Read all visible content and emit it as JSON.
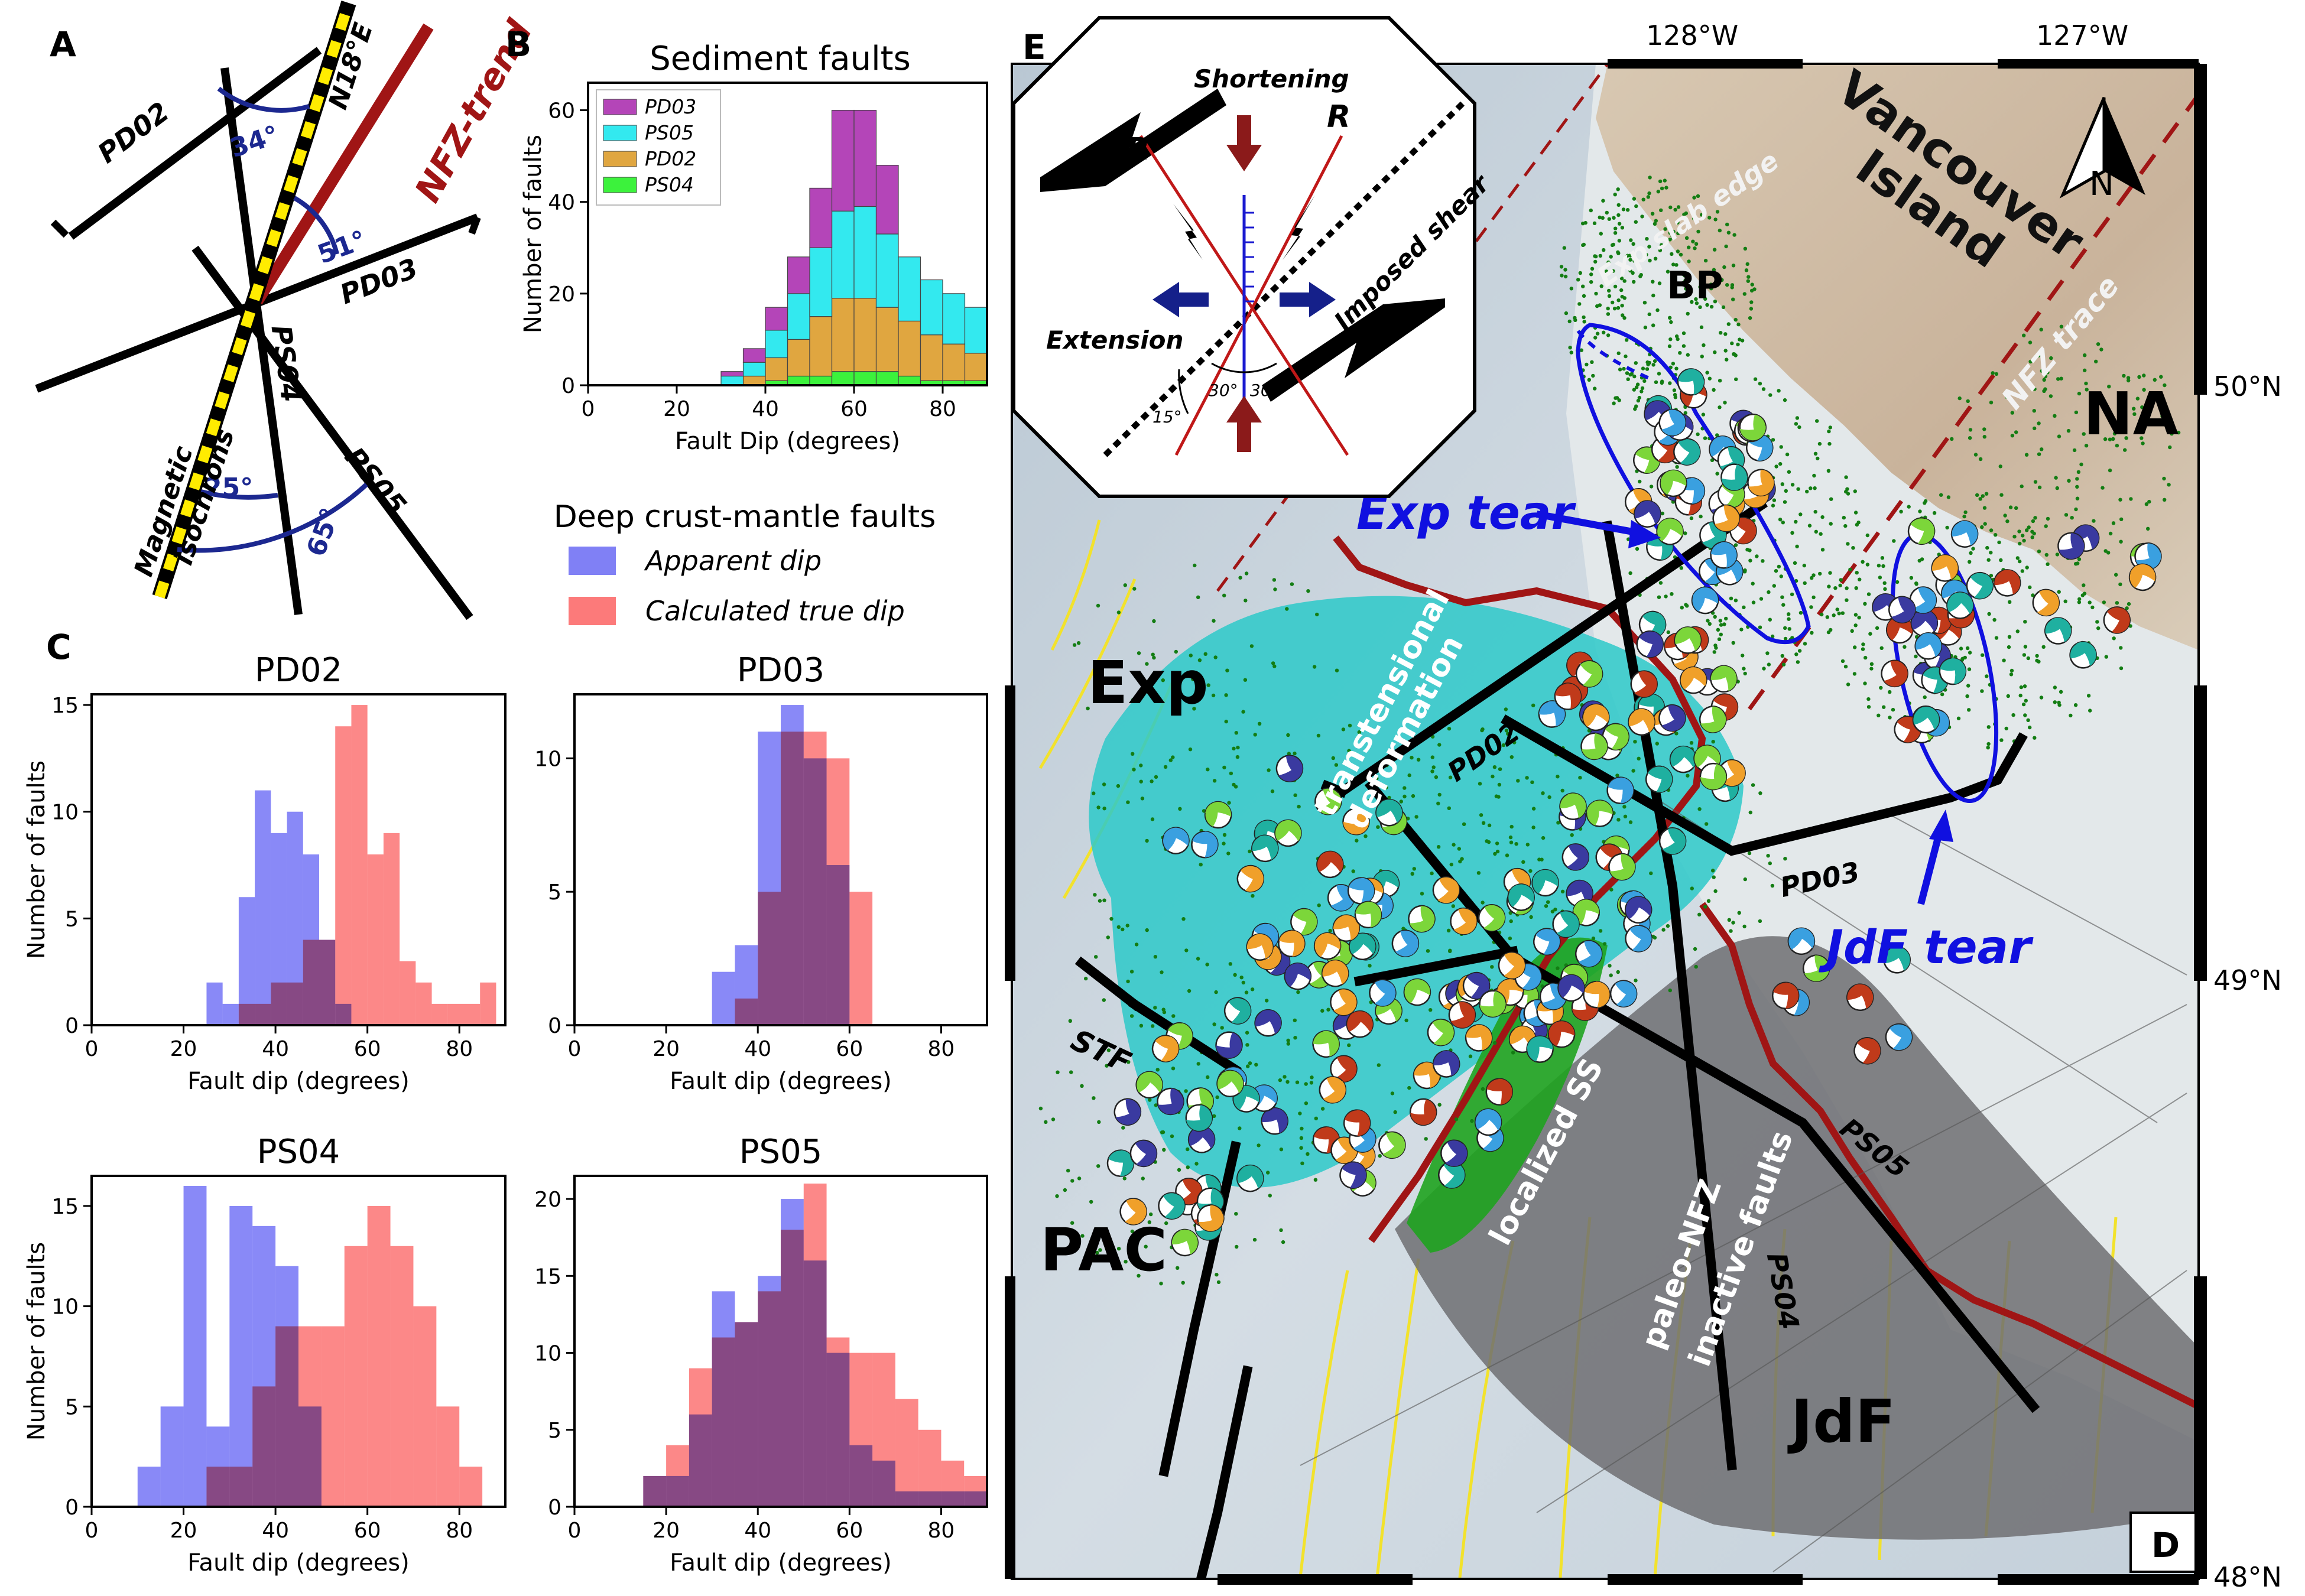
{
  "panel_labels": {
    "a": "A",
    "b": "B",
    "c": "C",
    "e": "E",
    "d": "D"
  },
  "panel_a": {
    "lines": [
      "PD02",
      "PD03",
      "PS04",
      "PS05"
    ],
    "trend_labels": {
      "n18": "N18°E",
      "nfz": "NFZ-trend",
      "mag1": "Magnetic",
      "mag2": "isochrons"
    },
    "angles": {
      "a34": "34°",
      "a51": "51°",
      "a25": "25°",
      "a65": "65°"
    },
    "colors": {
      "nfz": "#a01515",
      "angle": "#1c2890",
      "isochron": "#ffec00"
    }
  },
  "chart_data": [
    {
      "id": "sediment",
      "type": "bar",
      "stacked": true,
      "title": "Sediment faults",
      "xlabel": "Fault Dip (degrees)",
      "ylabel": "Number of faults",
      "xlim": [
        0,
        90
      ],
      "ylim": [
        0,
        66
      ],
      "xticks": [
        0,
        20,
        40,
        60,
        80
      ],
      "yticks": [
        0,
        20,
        40,
        60
      ],
      "bin_edges": [
        30,
        35,
        40,
        45,
        50,
        55,
        60,
        65,
        70,
        75,
        80,
        85,
        90
      ],
      "series": [
        {
          "name": "PS04",
          "color": "#3cf23c",
          "values": [
            0,
            0,
            1,
            2,
            2,
            3,
            3,
            3,
            2,
            1,
            1,
            1
          ]
        },
        {
          "name": "PD02",
          "color": "#e0a640",
          "values": [
            0,
            2,
            5,
            8,
            13,
            16,
            16,
            14,
            12,
            10,
            8,
            6
          ]
        },
        {
          "name": "PS05",
          "color": "#33e9ef",
          "values": [
            2,
            3,
            6,
            10,
            15,
            19,
            20,
            16,
            14,
            12,
            11,
            10
          ]
        },
        {
          "name": "PD03",
          "color": "#b445b8",
          "values": [
            1,
            3,
            5,
            8,
            13,
            22,
            21,
            15,
            0,
            0,
            0,
            0
          ]
        }
      ],
      "legend_order": [
        "PD03",
        "PS05",
        "PD02",
        "PS04"
      ],
      "legend_position": "top-left"
    },
    {
      "id": "pd02",
      "type": "bar",
      "overlay": true,
      "title": "PD02",
      "xlabel": "Fault dip (degrees)",
      "ylabel": "Number of faults",
      "xlim": [
        0,
        90
      ],
      "ylim": [
        0,
        15.5
      ],
      "xticks": [
        0,
        20,
        40,
        60,
        80
      ],
      "yticks": [
        0,
        5,
        10,
        15
      ],
      "bin_edges": [
        25,
        28.5,
        32,
        35.5,
        39,
        42.5,
        46,
        49.5,
        53,
        56.5,
        60,
        63.5,
        67,
        70.5,
        74,
        77.5,
        81,
        84.5,
        88,
        90
      ],
      "series": [
        {
          "name": "Apparent dip",
          "color": "#6f6ff5",
          "values": [
            2,
            1,
            6,
            11,
            9,
            10,
            8,
            4,
            1,
            0,
            0,
            0,
            0,
            0,
            0,
            0,
            0,
            0,
            0
          ]
        },
        {
          "name": "Calculated true dip",
          "color": "#fb6e6e",
          "values": [
            0,
            0,
            1,
            1,
            2,
            2,
            4,
            4,
            14,
            15,
            8,
            9,
            3,
            2,
            1,
            1,
            1,
            2,
            0
          ]
        }
      ]
    },
    {
      "id": "pd03",
      "type": "bar",
      "overlay": true,
      "title": "PD03",
      "xlabel": "Fault dip (degrees)",
      "ylabel": "",
      "xlim": [
        0,
        90
      ],
      "ylim": [
        0,
        12.4
      ],
      "xticks": [
        0,
        20,
        40,
        60,
        80
      ],
      "yticks": [
        0,
        5,
        10
      ],
      "bin_edges": [
        30,
        35,
        40,
        45,
        50,
        55,
        60,
        65,
        70,
        75
      ],
      "series": [
        {
          "name": "Apparent dip",
          "color": "#6f6ff5",
          "values": [
            2,
            3,
            11,
            12,
            10,
            6,
            0,
            0,
            0
          ]
        },
        {
          "name": "Calculated true dip",
          "color": "#fb6e6e",
          "values": [
            0,
            1,
            5,
            11,
            11,
            10,
            5,
            0,
            0
          ]
        }
      ]
    },
    {
      "id": "ps04",
      "type": "bar",
      "overlay": true,
      "title": "PS04",
      "xlabel": "Fault dip (degrees)",
      "ylabel": "Number of faults",
      "xlim": [
        0,
        90
      ],
      "ylim": [
        0,
        16.5
      ],
      "xticks": [
        0,
        20,
        40,
        60,
        80
      ],
      "yticks": [
        0,
        5,
        10,
        15
      ],
      "bin_edges": [
        10,
        15,
        20,
        25,
        30,
        35,
        40,
        45,
        50,
        55,
        60,
        65,
        70,
        75,
        80,
        85
      ],
      "series": [
        {
          "name": "Apparent dip",
          "color": "#6f6ff5",
          "values": [
            2,
            5,
            16,
            4,
            15,
            14,
            12,
            5,
            0,
            0,
            0,
            0,
            0,
            0,
            0
          ]
        },
        {
          "name": "Calculated true dip",
          "color": "#fb6e6e",
          "values": [
            0,
            0,
            0,
            2,
            2,
            6,
            9,
            9,
            9,
            13,
            15,
            13,
            10,
            5,
            2
          ]
        }
      ]
    },
    {
      "id": "ps05",
      "type": "bar",
      "overlay": true,
      "title": "PS05",
      "xlabel": "Fault dip (degrees)",
      "ylabel": "",
      "xlim": [
        0,
        90
      ],
      "ylim": [
        0,
        21.5
      ],
      "xticks": [
        0,
        20,
        40,
        60,
        80
      ],
      "yticks": [
        0,
        5,
        10,
        15,
        20
      ],
      "bin_edges": [
        15,
        20,
        25,
        30,
        35,
        40,
        45,
        50,
        55,
        60,
        65,
        70,
        75,
        80,
        85,
        90
      ],
      "series": [
        {
          "name": "Apparent dip",
          "color": "#6f6ff5",
          "values": [
            2,
            2,
            6,
            14,
            12,
            15,
            20,
            16,
            10,
            4,
            3,
            1,
            1,
            1,
            1
          ]
        },
        {
          "name": "Calculated true dip",
          "color": "#fb6e6e",
          "values": [
            2,
            4,
            9,
            11,
            12,
            14,
            18,
            21,
            11,
            10,
            10,
            7,
            5,
            3,
            2
          ]
        }
      ]
    }
  ],
  "deep_legend": {
    "title": "Deep crust-mantle faults",
    "items": [
      "Apparent dip",
      "Calculated true dip"
    ]
  },
  "map": {
    "lon_labels": [
      "128°W",
      "127°W"
    ],
    "lat_labels": [
      "50°N",
      "49°N",
      "48°N"
    ],
    "region_labels": {
      "exp": "Exp",
      "pac": "PAC",
      "jdf": "JdF",
      "na": "NA",
      "bp": "BP",
      "vancouver1": "Vancouver",
      "vancouver2": "Island"
    },
    "feature_labels": {
      "trans1": "transtensional",
      "trans2": "deformation",
      "localized": "localized SS",
      "paleo1": "paleo-NFZ",
      "paleo2": "inactive faults",
      "slabedge": "Exp slab edge",
      "nfztrace": "NFZ trace",
      "stf": "STF"
    },
    "profile_labels": [
      "PD02",
      "PD03",
      "PS04",
      "PS05"
    ],
    "tear_labels": {
      "exp": "Exp tear",
      "jdf": "JdF tear"
    },
    "north": "N",
    "colors": {
      "ocean": "#c8d3dc",
      "land": "#c9b9a4",
      "trench": "#a01515",
      "tear": "#1010e0",
      "exp_zone": "#2dc9c9",
      "ss_zone": "#1fa31f",
      "jdf_zone": "#6e6e72",
      "iso": "#f2e22c",
      "seis": "#137d13"
    }
  },
  "inset": {
    "labels": {
      "shortening": "Shortening",
      "extension": "Extension",
      "imposed": "Imposed shear",
      "r": "R",
      "rprime": "R'"
    },
    "angles": [
      "15°",
      "30°",
      "30°"
    ]
  }
}
